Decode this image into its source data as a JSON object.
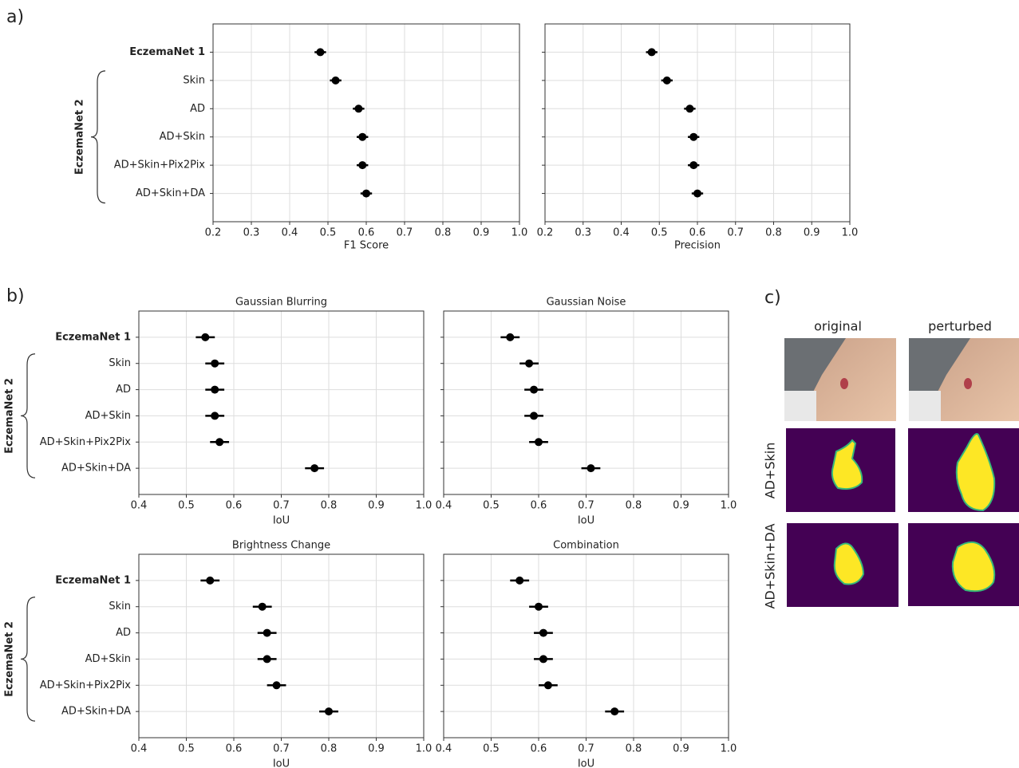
{
  "panel_labels": [
    "a)",
    "b)",
    "c)"
  ],
  "chart_data": [
    {
      "type": "dot",
      "xlabel": "F1 Score",
      "categories": [
        "EczemaNet 1",
        "Skin",
        "AD",
        "AD+Skin",
        "AD+Skin+Pix2Pix",
        "AD+Skin+DA"
      ],
      "group_label": "EczemaNet 2",
      "values": [
        0.48,
        0.52,
        0.58,
        0.59,
        0.59,
        0.6
      ],
      "errors": [
        0.015,
        0.015,
        0.015,
        0.015,
        0.015,
        0.015
      ],
      "color": "#000000",
      "xlim": [
        0.2,
        1.0
      ],
      "xticks": [
        0.2,
        0.3,
        0.4,
        0.5,
        0.6,
        0.7,
        0.8,
        0.9,
        {
          "value": 1,
          "label": "1.0"
        }
      ],
      "grid": true
    },
    {
      "type": "dot",
      "xlabel": "Precision",
      "categories": [
        null,
        null,
        null,
        null,
        null,
        null
      ],
      "values": [
        0.48,
        0.52,
        0.58,
        0.59,
        0.59,
        0.6
      ],
      "errors": [
        0.015,
        0.015,
        0.015,
        0.015,
        0.015,
        0.015
      ],
      "color": "#000000",
      "xlim": [
        0.2,
        1.0
      ],
      "xticks": [
        0.2,
        0.3,
        0.4,
        0.5,
        0.6,
        0.7,
        0.8,
        0.9,
        {
          "value": 1,
          "label": "1.0"
        }
      ],
      "grid": true
    },
    {
      "type": "dot",
      "title": "Gaussian Blurring",
      "xlabel": "IoU",
      "categories": [
        "EczemaNet 1",
        "Skin",
        "AD",
        "AD+Skin",
        "AD+Skin+Pix2Pix",
        "AD+Skin+DA"
      ],
      "group_label": "EczemaNet 2",
      "values": [
        0.54,
        0.56,
        0.56,
        0.56,
        0.57,
        0.77
      ],
      "errors": [
        0.02,
        0.02,
        0.02,
        0.02,
        0.02,
        0.02
      ],
      "color": "#000000",
      "xlim": [
        0.4,
        1.0
      ],
      "xticks": [
        0.4,
        0.5,
        0.6,
        0.7,
        0.8,
        0.9,
        {
          "value": 1,
          "label": "1.0"
        }
      ],
      "grid": true
    },
    {
      "type": "dot",
      "title": "Gaussian Noise",
      "xlabel": "IoU",
      "categories": [
        null,
        null,
        null,
        null,
        null,
        null
      ],
      "values": [
        0.54,
        0.58,
        0.59,
        0.59,
        0.6,
        0.71
      ],
      "errors": [
        0.02,
        0.02,
        0.02,
        0.02,
        0.02,
        0.02
      ],
      "color": "#000000",
      "xlim": [
        0.4,
        1.0
      ],
      "xticks": [
        0.4,
        0.5,
        0.6,
        0.7,
        0.8,
        0.9,
        {
          "value": 1,
          "label": "1.0"
        }
      ],
      "grid": true
    },
    {
      "type": "dot",
      "title": "Brightness Change",
      "xlabel": "IoU",
      "categories": [
        "EczemaNet 1",
        "Skin",
        "AD",
        "AD+Skin",
        "AD+Skin+Pix2Pix",
        "AD+Skin+DA"
      ],
      "group_label": "EczemaNet 2",
      "values": [
        0.55,
        0.66,
        0.67,
        0.67,
        0.69,
        0.8
      ],
      "errors": [
        0.02,
        0.02,
        0.02,
        0.02,
        0.02,
        0.02
      ],
      "color": "#000000",
      "xlim": [
        0.4,
        1.0
      ],
      "xticks": [
        0.4,
        0.5,
        0.6,
        0.7,
        0.8,
        0.9,
        {
          "value": 1,
          "label": "1.0"
        }
      ],
      "grid": true
    },
    {
      "type": "dot",
      "title": "Combination",
      "xlabel": "IoU",
      "categories": [
        null,
        null,
        null,
        null,
        null,
        null
      ],
      "values": [
        0.56,
        0.6,
        0.61,
        0.61,
        0.62,
        0.76
      ],
      "errors": [
        0.02,
        0.02,
        0.02,
        0.02,
        0.02,
        0.02
      ],
      "color": "#000000",
      "xlim": [
        0.4,
        1.0
      ],
      "xticks": [
        0.4,
        0.5,
        0.6,
        0.7,
        0.8,
        0.9,
        {
          "value": 1,
          "label": "1.0"
        }
      ],
      "grid": true
    }
  ],
  "image_panel": {
    "columns": [
      "original",
      "perturbed"
    ],
    "rows": [
      "AD+Skin",
      "AD+Skin+DA"
    ]
  }
}
